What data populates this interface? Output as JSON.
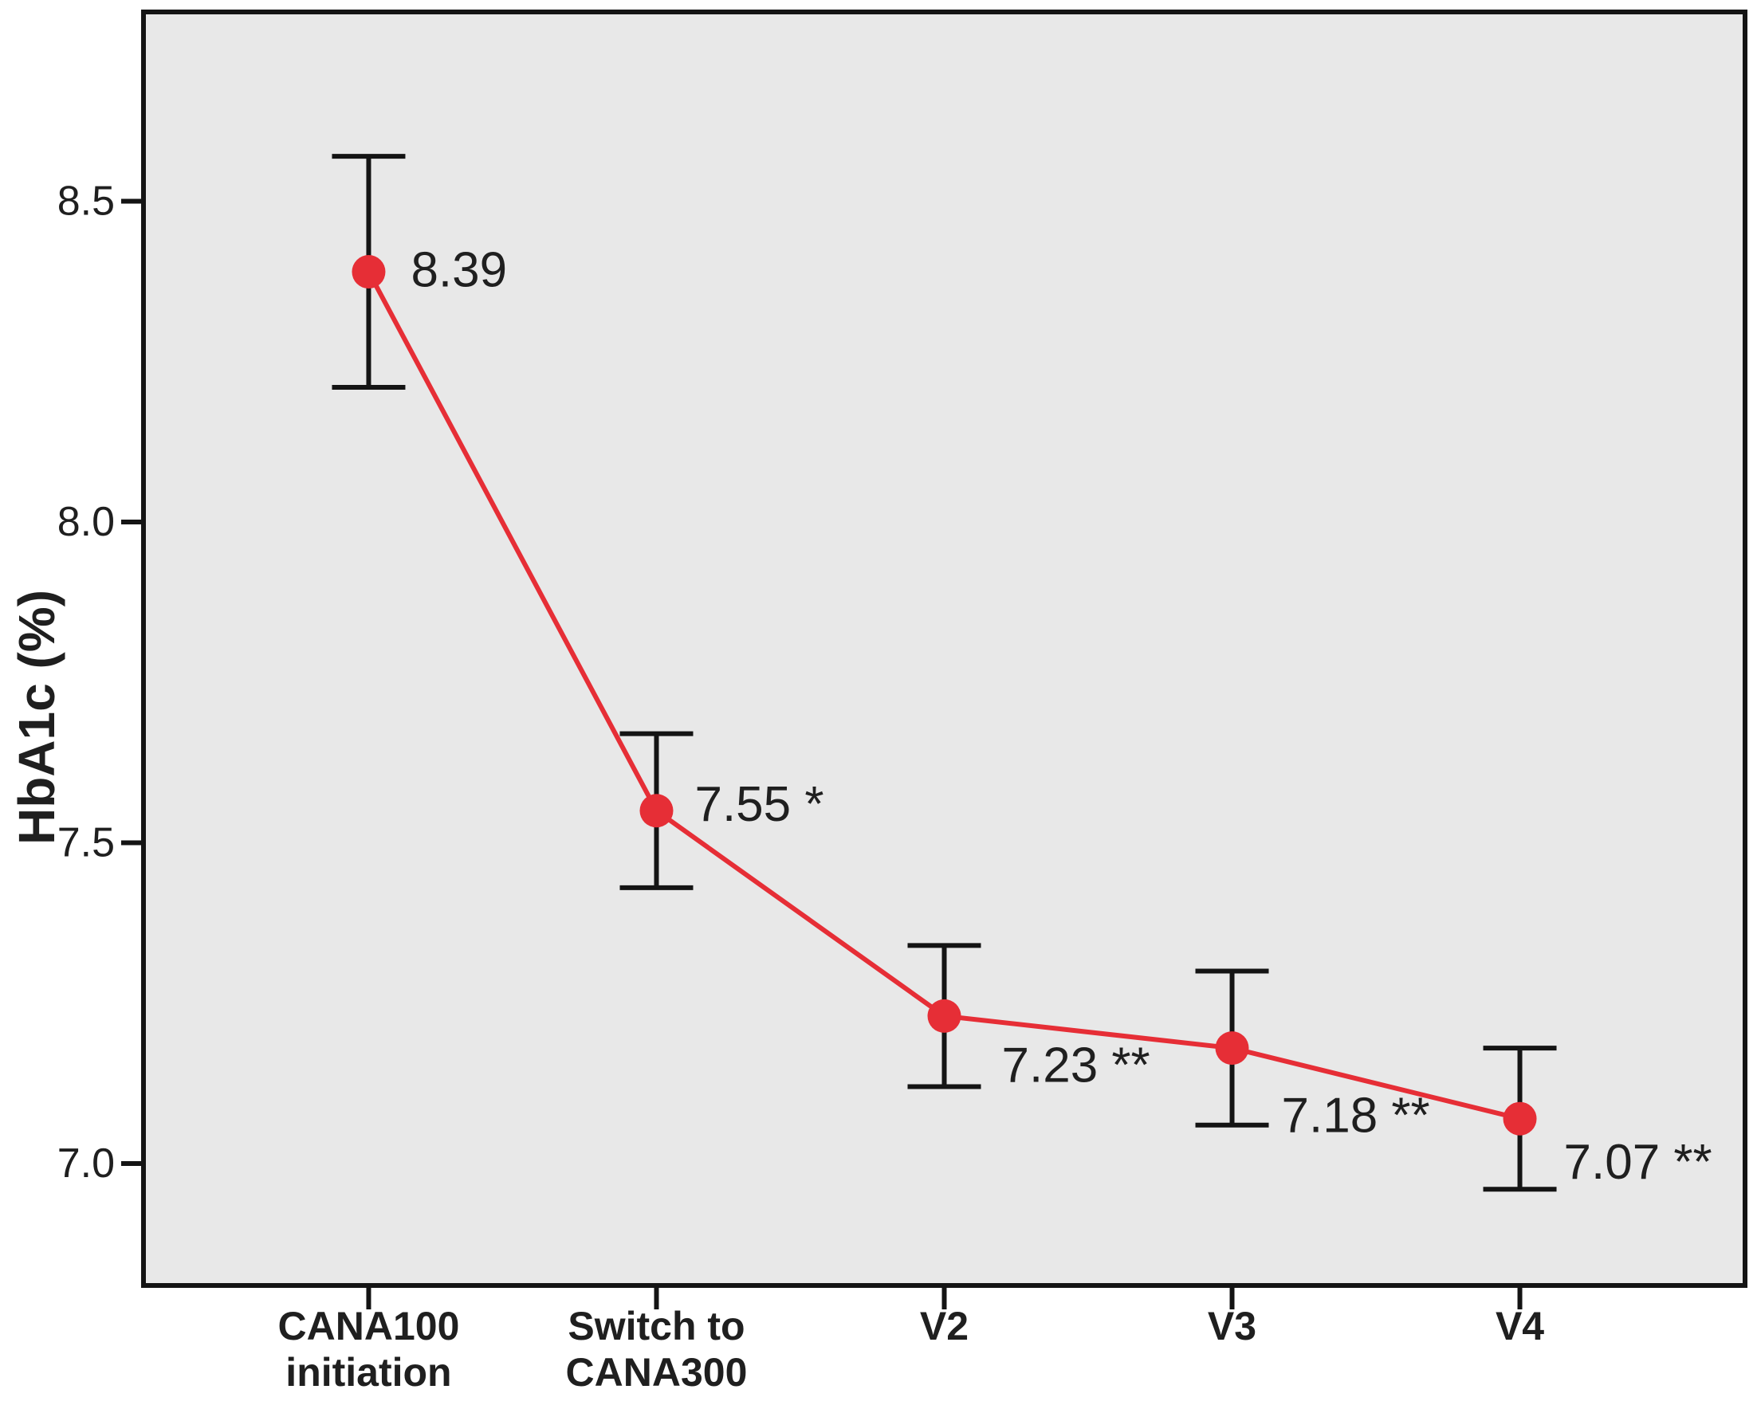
{
  "figure": {
    "background": "#ffffff",
    "plot_background": "#e8e8e8",
    "frame_color": "#141414",
    "error_bar_color": "#141414",
    "text_color": "#1f1f1f",
    "series_color": "#e62e36"
  },
  "chart_data": {
    "type": "line",
    "title": "",
    "xlabel": "",
    "ylabel": "HbA1c (%)",
    "ylim": [
      6.81,
      8.8
    ],
    "yticks": [
      "8.5",
      "8.0",
      "7.5",
      "7.0"
    ],
    "ytick_values": [
      8.5,
      8.0,
      7.5,
      7.0
    ],
    "grid": false,
    "legend_position": "none",
    "marker": "filled-circle",
    "has_error_bars": true,
    "categories": [
      "CANA100 initiation",
      "Switch to CANA300",
      "V2",
      "V3",
      "V4"
    ],
    "category_label_lines": [
      [
        "CANA100",
        "initiation"
      ],
      [
        "Switch to",
        "CANA300"
      ],
      [
        "V2"
      ],
      [
        "V3"
      ],
      [
        "V4"
      ]
    ],
    "series": [
      {
        "name": "HbA1c (%)",
        "values": [
          8.39,
          7.55,
          7.23,
          7.18,
          7.07
        ],
        "error_upper": [
          8.57,
          7.67,
          7.34,
          7.3,
          7.18
        ],
        "error_lower": [
          8.21,
          7.43,
          7.12,
          7.06,
          6.96
        ],
        "point_labels": [
          "8.39",
          "7.55 *",
          "7.23 **",
          "7.18 **",
          "7.07 **"
        ]
      }
    ]
  }
}
